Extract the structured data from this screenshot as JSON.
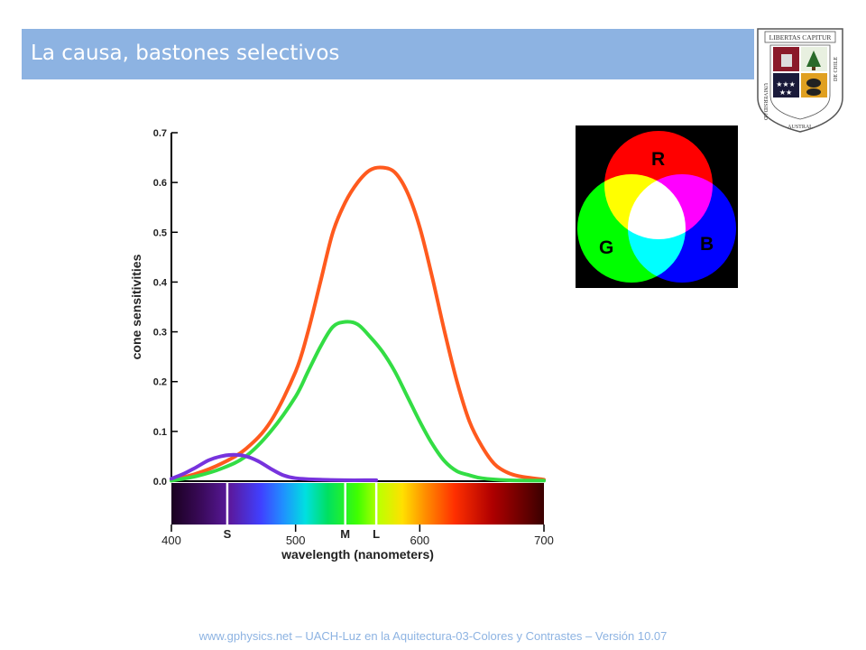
{
  "slide": {
    "title": "La causa, bastones selectivos",
    "footer": "www.gphysics.net – UACH-Luz en la Aquitectura-03-Colores y Contrastes – Versión 10.07"
  },
  "logo": {
    "banner": "LIBERTAS CAPITUR",
    "ring_left": "UNIVERSIDAD",
    "ring_bottom": "AUSTRAL",
    "ring_right": "DE CHILE"
  },
  "rgb_diagram": {
    "labels": {
      "r": "R",
      "g": "G",
      "b": "B"
    },
    "colors": {
      "red": "#ff0000",
      "green": "#00ff00",
      "blue": "#0000ff",
      "background": "#000000"
    }
  },
  "chart_data": {
    "type": "line",
    "xlabel": "wavelength (nanometers)",
    "ylabel": "cone sensitivities",
    "xlim": [
      400,
      700
    ],
    "ylim": [
      0,
      0.7
    ],
    "x_ticks": [
      400,
      500,
      600,
      700
    ],
    "y_ticks": [
      "0.0",
      "0.1",
      "0.2",
      "0.3",
      "0.4",
      "0.5",
      "0.6",
      "0.7"
    ],
    "markers": [
      {
        "label": "S",
        "x": 445
      },
      {
        "label": "M",
        "x": 540
      },
      {
        "label": "L",
        "x": 565
      }
    ],
    "series": [
      {
        "color": "#ff5a1e",
        "points": [
          [
            400,
            0.002
          ],
          [
            420,
            0.015
          ],
          [
            440,
            0.035
          ],
          [
            460,
            0.065
          ],
          [
            480,
            0.12
          ],
          [
            500,
            0.22
          ],
          [
            510,
            0.3
          ],
          [
            520,
            0.4
          ],
          [
            530,
            0.5
          ],
          [
            540,
            0.56
          ],
          [
            550,
            0.6
          ],
          [
            560,
            0.625
          ],
          [
            570,
            0.63
          ],
          [
            580,
            0.62
          ],
          [
            590,
            0.58
          ],
          [
            600,
            0.51
          ],
          [
            610,
            0.41
          ],
          [
            620,
            0.3
          ],
          [
            630,
            0.2
          ],
          [
            640,
            0.12
          ],
          [
            650,
            0.07
          ],
          [
            660,
            0.035
          ],
          [
            670,
            0.018
          ],
          [
            680,
            0.01
          ],
          [
            700,
            0.003
          ]
        ]
      },
      {
        "color": "#33dd44",
        "points": [
          [
            400,
            0.001
          ],
          [
            420,
            0.01
          ],
          [
            440,
            0.025
          ],
          [
            460,
            0.05
          ],
          [
            480,
            0.1
          ],
          [
            500,
            0.17
          ],
          [
            510,
            0.22
          ],
          [
            520,
            0.27
          ],
          [
            530,
            0.31
          ],
          [
            540,
            0.32
          ],
          [
            550,
            0.315
          ],
          [
            560,
            0.29
          ],
          [
            570,
            0.26
          ],
          [
            580,
            0.22
          ],
          [
            590,
            0.17
          ],
          [
            600,
            0.12
          ],
          [
            610,
            0.075
          ],
          [
            620,
            0.04
          ],
          [
            630,
            0.02
          ],
          [
            640,
            0.012
          ],
          [
            650,
            0.006
          ],
          [
            670,
            0.002
          ],
          [
            700,
            0.001
          ]
        ]
      },
      {
        "color": "#7733dd",
        "points": [
          [
            400,
            0.005
          ],
          [
            410,
            0.015
          ],
          [
            420,
            0.028
          ],
          [
            430,
            0.042
          ],
          [
            440,
            0.05
          ],
          [
            450,
            0.053
          ],
          [
            460,
            0.05
          ],
          [
            470,
            0.04
          ],
          [
            480,
            0.025
          ],
          [
            490,
            0.012
          ],
          [
            500,
            0.006
          ],
          [
            520,
            0.003
          ],
          [
            540,
            0.002
          ],
          [
            560,
            0.002
          ],
          [
            565,
            0.002
          ]
        ]
      }
    ]
  }
}
